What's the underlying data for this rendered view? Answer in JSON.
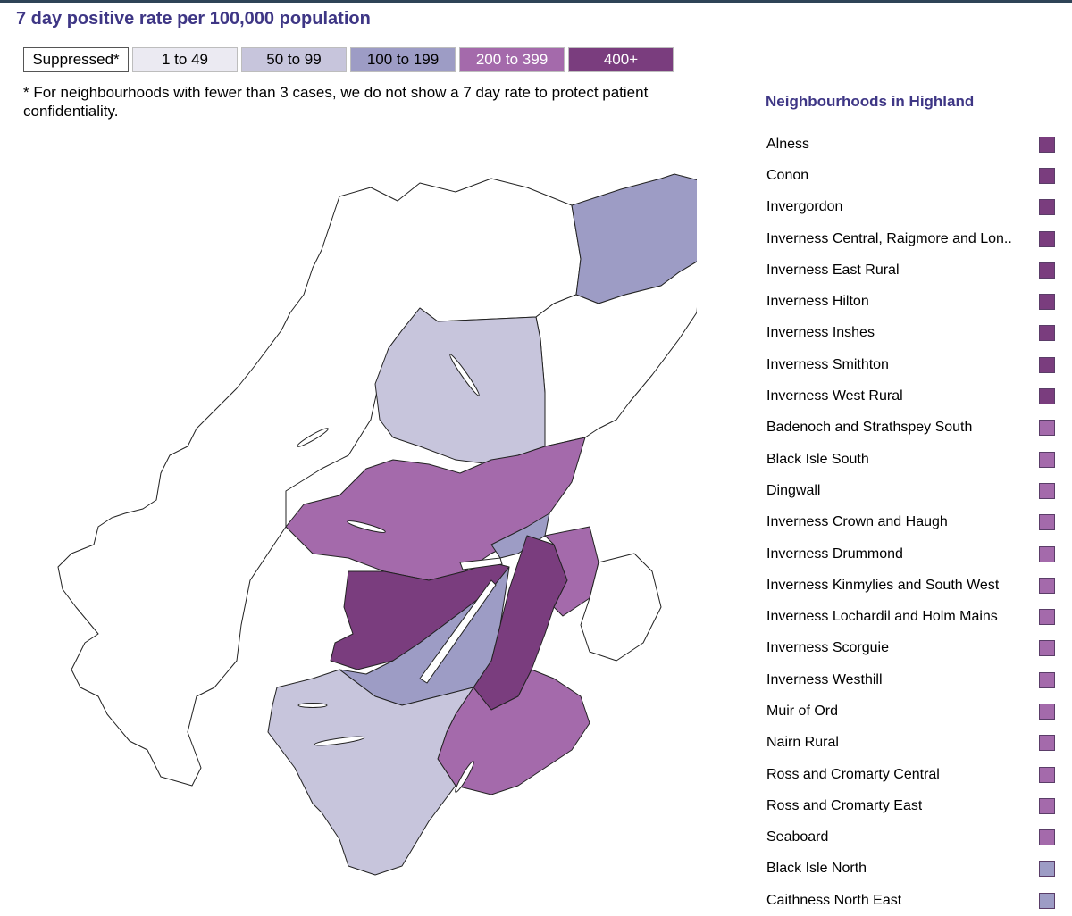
{
  "title": "7 day positive rate per 100,000 population",
  "legend": [
    {
      "label": "Suppressed*",
      "fill": "#ffffff",
      "text": "#000000",
      "border": "#555555"
    },
    {
      "label": "1 to 49",
      "fill": "#ebeaf2",
      "text": "#000000",
      "border": "#bdbdbd"
    },
    {
      "label": "50 to 99",
      "fill": "#c7c5dc",
      "text": "#000000",
      "border": "#bdbdbd"
    },
    {
      "label": "100 to 199",
      "fill": "#9d9cc5",
      "text": "#000000",
      "border": "#bdbdbd"
    },
    {
      "label": "200 to 399",
      "fill": "#a46aab",
      "text": "#ffffff",
      "border": "#bdbdbd"
    },
    {
      "label": "400+",
      "fill": "#7a3d7e",
      "text": "#ffffff",
      "border": "#bdbdbd"
    }
  ],
  "footnote": "* For neighbourhoods with fewer than 3 cases, we do not show a 7 day rate to protect patient confidentiality.",
  "neighbourhoods_title": "Neighbourhoods in Highland",
  "neighbourhoods": [
    {
      "name": "Alness",
      "color": "#7a3d7e"
    },
    {
      "name": "Conon",
      "color": "#7a3d7e"
    },
    {
      "name": "Invergordon",
      "color": "#7a3d7e"
    },
    {
      "name": "Inverness Central, Raigmore and Lon..",
      "color": "#7a3d7e"
    },
    {
      "name": "Inverness East Rural",
      "color": "#7a3d7e"
    },
    {
      "name": "Inverness Hilton",
      "color": "#7a3d7e"
    },
    {
      "name": "Inverness Inshes",
      "color": "#7a3d7e"
    },
    {
      "name": "Inverness Smithton",
      "color": "#7a3d7e"
    },
    {
      "name": "Inverness West Rural",
      "color": "#7a3d7e"
    },
    {
      "name": "Badenoch and Strathspey South",
      "color": "#a46aab"
    },
    {
      "name": "Black Isle South",
      "color": "#a46aab"
    },
    {
      "name": "Dingwall",
      "color": "#a46aab"
    },
    {
      "name": "Inverness Crown and Haugh",
      "color": "#a46aab"
    },
    {
      "name": "Inverness Drummond",
      "color": "#a46aab"
    },
    {
      "name": "Inverness Kinmylies and South West",
      "color": "#a46aab"
    },
    {
      "name": "Inverness Lochardil and Holm Mains",
      "color": "#a46aab"
    },
    {
      "name": "Inverness Scorguie",
      "color": "#a46aab"
    },
    {
      "name": "Inverness Westhill",
      "color": "#a46aab"
    },
    {
      "name": "Muir of Ord",
      "color": "#a46aab"
    },
    {
      "name": "Nairn Rural",
      "color": "#a46aab"
    },
    {
      "name": "Ross and Cromarty Central",
      "color": "#a46aab"
    },
    {
      "name": "Ross and Cromarty East",
      "color": "#a46aab"
    },
    {
      "name": "Seaboard",
      "color": "#a46aab"
    },
    {
      "name": "Black Isle North",
      "color": "#9d9cc5"
    },
    {
      "name": "Caithness North East",
      "color": "#9d9cc5"
    }
  ]
}
